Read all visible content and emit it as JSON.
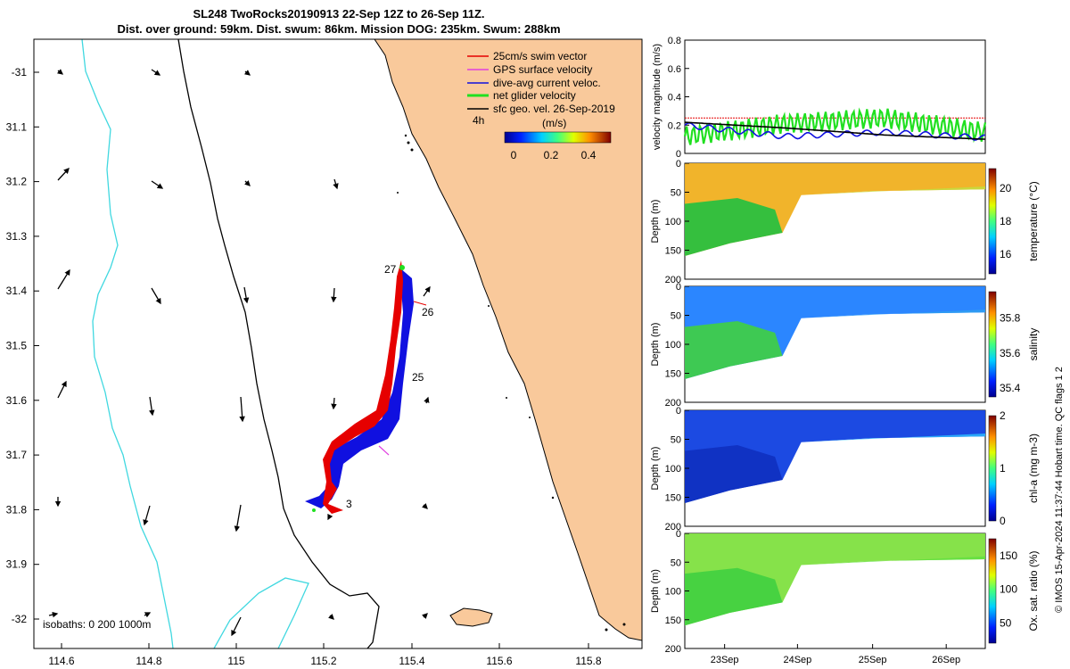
{
  "header": {
    "title": "SL248 TwoRocks20190913 22-Sep 12Z to 26-Sep 11Z.",
    "subtitle": "Dist. over ground: 59km. Dist. swum: 86km. Mission DOG: 235km. Swum: 288km"
  },
  "map": {
    "x_ticks": [
      "114.6",
      "114.8",
      "115",
      "115.2",
      "115.4",
      "115.6",
      "115.8"
    ],
    "y_ticks": [
      "-31",
      "31.1",
      "31.2",
      "31.3",
      "31.4",
      "31.5",
      "31.6",
      "31.7",
      "31.8",
      "31.9",
      "-32"
    ],
    "legend": [
      {
        "label": "25cm/s swim vector",
        "color": "#e60000"
      },
      {
        "label": "GPS surface velocity",
        "color": "#e040e0"
      },
      {
        "label": "dive-avg current veloc.",
        "color": "#1010e0"
      },
      {
        "label": "net glider velocity",
        "color": "#20e020"
      },
      {
        "label": "sfc geo. vel. 26-Sep-2019",
        "color": "#000000"
      }
    ],
    "legend_4h": "4h",
    "colorbar_title": "(m/s)",
    "colorbar_ticks": [
      "0",
      "0.2",
      "0.4"
    ],
    "day_labels": [
      "27",
      "26",
      "25",
      "3"
    ],
    "isobaths": "isobaths: 0   200  1000m",
    "colors": {
      "land": "#f9c99b",
      "isobath200": "#000000",
      "isobath1000": "#40d8e0"
    }
  },
  "chart_data": [
    {
      "type": "line",
      "title": "",
      "ylabel": "velocity magnitude (m/s)",
      "ylim": [
        0,
        0.8
      ],
      "yticks": [
        "0",
        "0.2",
        "0.4",
        "0.6",
        "0.8"
      ],
      "x": [
        "23Sep",
        "24Sep",
        "25Sep",
        "26Sep"
      ],
      "series": [
        {
          "name": "25cm/s swim vector",
          "color": "#e60000",
          "values": [
            0.25,
            0.25,
            0.25,
            0.25
          ]
        },
        {
          "name": "net glider velocity",
          "color": "#20e020",
          "values": [
            0.12,
            0.21,
            0.25,
            0.15
          ]
        },
        {
          "name": "dive-avg current veloc.",
          "color": "#1010e0",
          "values": [
            0.2,
            0.12,
            0.15,
            0.11
          ]
        },
        {
          "name": "sfc geo. vel.",
          "color": "#000000",
          "values": [
            0.22,
            0.18,
            0.13,
            0.1
          ]
        }
      ]
    },
    {
      "type": "heatmap",
      "ylabel": "Depth (m)",
      "cbar_label": "temperature (°C)",
      "ylim": [
        200,
        0
      ],
      "yticks": [
        "0",
        "50",
        "100",
        "150",
        "200"
      ],
      "cbar_ticks": [
        "16",
        "18",
        "20"
      ],
      "cbar_range": [
        14.8,
        21.2
      ]
    },
    {
      "type": "heatmap",
      "ylabel": "Depth (m)",
      "cbar_label": "salinity",
      "ylim": [
        200,
        0
      ],
      "yticks": [
        "0",
        "50",
        "100",
        "150",
        "200"
      ],
      "cbar_ticks": [
        "35.4",
        "35.6",
        "35.8"
      ],
      "cbar_range": [
        35.35,
        35.95
      ]
    },
    {
      "type": "heatmap",
      "ylabel": "Depth (m)",
      "cbar_label": "chl-a (mg m-3)",
      "ylim": [
        200,
        0
      ],
      "yticks": [
        "0",
        "50",
        "100",
        "150",
        "200"
      ],
      "cbar_ticks": [
        "0",
        "1",
        "2"
      ],
      "cbar_range": [
        0,
        2
      ]
    },
    {
      "type": "heatmap",
      "ylabel": "Depth (m)",
      "cbar_label": "Ox. sat. ratio (%)",
      "ylim": [
        200,
        0
      ],
      "yticks": [
        "0",
        "50",
        "100",
        "150",
        "200"
      ],
      "cbar_ticks": [
        "50",
        "100",
        "150"
      ],
      "cbar_range": [
        20,
        175
      ],
      "xticks": [
        "23Sep",
        "24Sep",
        "25Sep",
        "26Sep"
      ]
    }
  ],
  "footer": "© IMOS 15-Apr-2024 11:37:44 Hobart time. QC flags 1  2"
}
